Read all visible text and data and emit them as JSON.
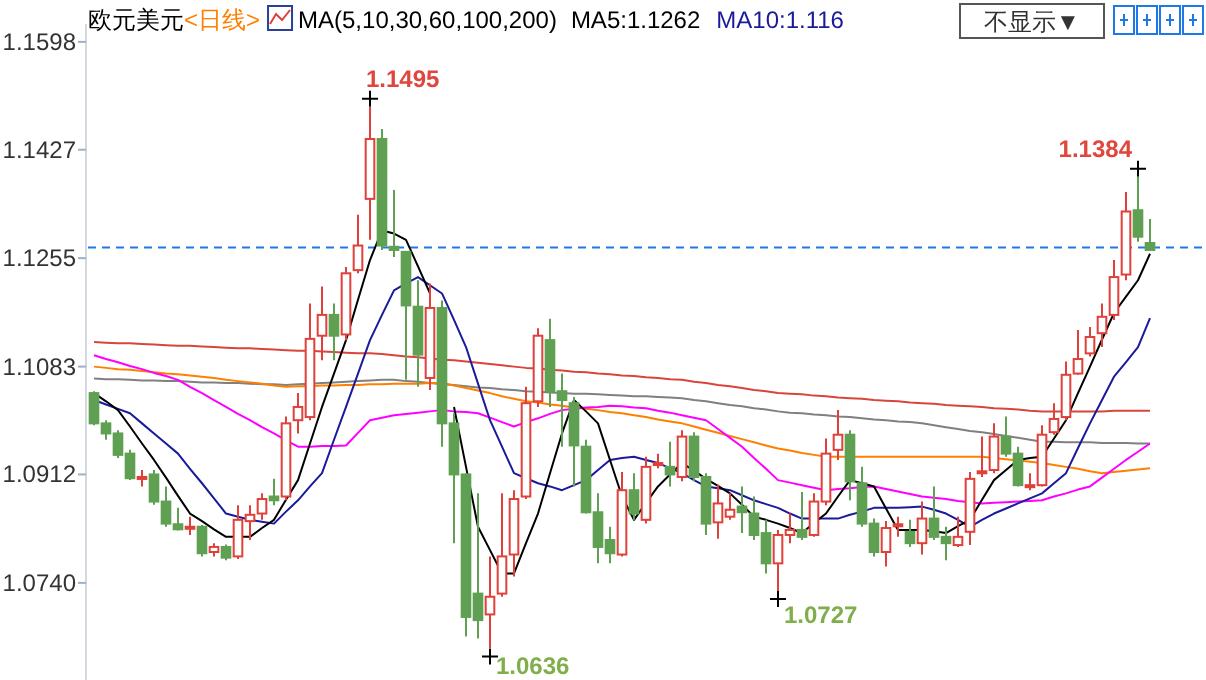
{
  "chart_data": {
    "type": "candlestick",
    "title": "欧元美元",
    "subtitle": "<日线>",
    "categories": [
      null,
      null,
      null,
      null,
      null,
      null,
      null,
      null,
      null,
      null,
      null,
      null,
      null,
      null,
      null,
      null,
      null,
      null,
      null,
      null,
      null,
      null,
      null,
      null,
      null,
      null,
      null,
      null,
      null,
      null,
      null,
      null,
      null,
      null,
      null,
      null,
      null,
      null,
      null,
      null,
      null,
      null,
      null,
      null,
      null,
      null,
      null,
      null,
      null,
      null,
      null,
      null,
      null,
      null,
      null,
      null,
      null,
      null,
      null,
      null,
      null,
      null,
      null,
      null,
      null,
      null,
      null,
      null,
      null,
      null,
      null,
      null,
      null,
      null,
      null,
      null,
      null,
      null,
      null,
      null,
      null,
      null,
      null,
      null,
      null,
      null,
      null,
      null,
      null
    ],
    "ohlc": [
      [
        1.1041,
        1.1044,
        1.099,
        1.0993
      ],
      [
        1.0993,
        1.0998,
        1.0967,
        1.0977
      ],
      [
        1.0977,
        1.0982,
        1.0938,
        1.0943
      ],
      [
        1.0945,
        1.0951,
        1.0903,
        1.0906
      ],
      [
        1.0905,
        1.0919,
        1.0893,
        1.0908
      ],
      [
        1.0912,
        1.0919,
        1.0864,
        1.0869
      ],
      [
        1.0869,
        1.0893,
        1.0829,
        1.0834
      ],
      [
        1.0833,
        1.0859,
        1.0823,
        1.0825
      ],
      [
        1.0827,
        1.0845,
        1.0816,
        1.0829
      ],
      [
        1.0829,
        1.0832,
        1.0782,
        1.0787
      ],
      [
        1.0789,
        1.0803,
        1.0782,
        1.0797
      ],
      [
        1.0797,
        1.0801,
        1.0776,
        1.078
      ],
      [
        1.0782,
        1.0863,
        1.0778,
        1.084
      ],
      [
        1.0838,
        1.0863,
        1.0808,
        1.0848
      ],
      [
        1.085,
        1.0882,
        1.084,
        1.0873
      ],
      [
        1.0877,
        1.0905,
        1.0863,
        1.0871
      ],
      [
        1.0877,
        1.1004,
        1.0871,
        1.0993
      ],
      [
        1.0998,
        1.1041,
        1.0977,
        1.1019
      ],
      [
        1.1003,
        1.1183,
        1.0998,
        1.1127
      ],
      [
        1.1132,
        1.121,
        1.1093,
        1.1165
      ],
      [
        1.1165,
        1.1183,
        1.1093,
        1.1132
      ],
      [
        1.1134,
        1.1241,
        1.1125,
        1.1231
      ],
      [
        1.1236,
        1.1324,
        1.1231,
        1.1275
      ],
      [
        1.1349,
        1.1495,
        1.1284,
        1.1444
      ],
      [
        1.1444,
        1.146,
        1.1268,
        1.1275
      ],
      [
        1.1273,
        1.1363,
        1.1257,
        1.1268
      ],
      [
        1.1265,
        1.1265,
        1.1062,
        1.118
      ],
      [
        1.1178,
        1.122,
        1.1051,
        1.1102
      ],
      [
        1.1065,
        1.1215,
        1.1046,
        1.1176
      ],
      [
        1.1176,
        1.1188,
        1.0956,
        1.0993
      ],
      [
        1.0993,
        1.1009,
        1.0803,
        1.0912
      ],
      [
        1.0912,
        1.0914,
        1.0655,
        1.0686
      ],
      [
        1.0723,
        1.0882,
        1.0652,
        1.0681
      ],
      [
        1.069,
        1.0782,
        1.0636,
        1.0718
      ],
      [
        1.0723,
        1.0882,
        1.0718,
        1.0782
      ],
      [
        1.0785,
        1.0887,
        1.075,
        1.0873
      ],
      [
        1.0877,
        1.1051,
        1.0873,
        1.1025
      ],
      [
        1.1028,
        1.1144,
        1.1019,
        1.1132
      ],
      [
        1.1125,
        1.1159,
        1.1019,
        1.1044
      ],
      [
        1.1044,
        1.1072,
        1.0956,
        1.103
      ],
      [
        1.1025,
        1.1035,
        1.0893,
        1.0958
      ],
      [
        1.0956,
        1.0967,
        1.085,
        1.0852
      ],
      [
        1.0852,
        1.0882,
        1.0771,
        1.0797
      ],
      [
        1.0808,
        1.0829,
        1.0771,
        1.0787
      ],
      [
        1.0785,
        1.0916,
        1.0782,
        1.0887
      ],
      [
        1.0887,
        1.0914,
        1.084,
        1.085
      ],
      [
        1.084,
        1.094,
        1.0834,
        1.0924
      ],
      [
        1.0928,
        1.0945,
        1.0922,
        1.093
      ],
      [
        1.0924,
        1.0964,
        1.0893,
        1.0912
      ],
      [
        1.0908,
        1.0982,
        1.0901,
        1.0972
      ],
      [
        1.0972,
        1.0979,
        1.0901,
        1.0908
      ],
      [
        1.0908,
        1.0914,
        1.0816,
        1.0834
      ],
      [
        1.0836,
        1.0896,
        1.081,
        1.0866
      ],
      [
        1.0845,
        1.0882,
        1.084,
        1.0856
      ],
      [
        1.0861,
        1.0893,
        1.0819,
        1.0852
      ],
      [
        1.085,
        1.0877,
        1.0808,
        1.0816
      ],
      [
        1.0819,
        1.084,
        1.0755,
        1.0771
      ],
      [
        1.0771,
        1.0824,
        1.0727,
        1.0816
      ],
      [
        1.0816,
        1.085,
        1.0803,
        1.0824
      ],
      [
        1.0824,
        1.0884,
        1.0808,
        1.0813
      ],
      [
        1.0816,
        1.0882,
        1.0813,
        1.0869
      ],
      [
        1.0869,
        1.0969,
        1.0863,
        1.0945
      ],
      [
        1.0951,
        1.1014,
        1.0935,
        1.0975
      ],
      [
        1.0975,
        1.0982,
        1.0871,
        1.0901
      ],
      [
        1.0898,
        1.0924,
        1.0829,
        1.0834
      ],
      [
        1.0834,
        1.0842,
        1.0782,
        1.0789
      ],
      [
        1.0789,
        1.0838,
        1.0766,
        1.0827
      ],
      [
        1.0831,
        1.0845,
        1.0813,
        1.0833
      ],
      [
        1.0821,
        1.084,
        1.0797,
        1.0803
      ],
      [
        1.0803,
        1.0869,
        1.0785,
        1.0842
      ],
      [
        1.0842,
        1.0893,
        1.0808,
        1.0813
      ],
      [
        1.0813,
        1.0829,
        1.0776,
        1.0803
      ],
      [
        1.08,
        1.0845,
        1.0797,
        1.0813
      ],
      [
        1.0821,
        1.0916,
        1.08,
        1.0905
      ],
      [
        1.0914,
        1.0972,
        1.0908,
        1.0917
      ],
      [
        1.0919,
        1.0993,
        1.0914,
        1.0972
      ],
      [
        1.0972,
        1.1004,
        1.094,
        1.0945
      ],
      [
        1.0945,
        1.0956,
        1.0893,
        1.0895
      ],
      [
        1.0893,
        1.0914,
        1.0887,
        1.0895
      ],
      [
        1.0895,
        1.099,
        1.0893,
        1.0975
      ],
      [
        1.0979,
        1.1025,
        1.0975,
        1.1
      ],
      [
        1.1003,
        1.1091,
        1.0998,
        1.107
      ],
      [
        1.1072,
        1.1141,
        1.107,
        1.1095
      ],
      [
        1.1104,
        1.1146,
        1.1099,
        1.113
      ],
      [
        1.1136,
        1.1183,
        1.1114,
        1.1162
      ],
      [
        1.1165,
        1.1252,
        1.1157,
        1.1225
      ],
      [
        1.1229,
        1.136,
        1.122,
        1.1329
      ],
      [
        1.1331,
        1.1384,
        1.1281,
        1.1289
      ],
      [
        1.1279,
        1.1317,
        1.1268,
        1.1268
      ]
    ],
    "series": [
      {
        "name": "MA5:1.1262",
        "type": "line",
        "color": "#000000",
        "values": [
          1.1041,
          1.1028,
          1.1014,
          1.0988,
          1.0961,
          1.0935,
          1.0907,
          1.0878,
          1.085,
          1.0838,
          1.0825,
          1.0813,
          1.0813,
          1.0813,
          1.0827,
          1.084,
          1.0872,
          1.0903,
          1.0961,
          1.1019,
          1.1072,
          1.1125,
          1.1189,
          1.1252,
          1.1299,
          1.1294,
          1.1284,
          1.1242,
          1.1199,
          null,
          1.1019,
          1.0924,
          1.0829,
          1.0792,
          1.0755,
          1.0755,
          1.0803,
          1.085,
          1.0914,
          1.0977,
          1.103,
          1.1012,
          1.0993,
          1.0935,
          1.0877,
          1.084,
          1.0867,
          1.0893,
          1.0912,
          1.093,
          1.0918,
          1.0905,
          1.0894,
          1.0882,
          1.0864,
          1.0845,
          1.084,
          1.0834,
          1.0827,
          1.0819,
          1.0835,
          1.085,
          1.0877,
          1.0903,
          1.0898,
          1.0893,
          1.0858,
          1.0824,
          1.0824,
          1.0824,
          1.0822,
          1.0819,
          1.083,
          1.084,
          1.0872,
          1.0903,
          1.0919,
          1.0935,
          1.0938,
          1.094,
          1.0969,
          1.0998,
          1.1041,
          1.1083,
          1.1126,
          1.1168,
          1.1194,
          1.122,
          1.1262
        ]
      },
      {
        "name": "MA10:1.116",
        "type": "line",
        "color": "#1a1a9a",
        "values": [
          1.103,
          1.1023,
          1.1016,
          1.1009,
          1.0993,
          1.0977,
          1.0961,
          1.0945,
          1.0921,
          1.0898,
          1.0874,
          1.085,
          1.0845,
          1.084,
          1.0837,
          1.0834,
          1.0853,
          1.0871,
          1.0893,
          1.0914,
          1.0967,
          1.1019,
          1.1072,
          1.1125,
          1.1165,
          1.1204,
          1.1215,
          1.1225,
          1.1212,
          1.1199,
          1.1157,
          1.1114,
          1.1056,
          1.0998,
          1.0956,
          1.0914,
          1.0906,
          1.0898,
          1.0893,
          1.0887,
          1.0895,
          1.0903,
          1.0919,
          1.0935,
          1.0938,
          1.094,
          1.0935,
          1.093,
          1.0922,
          1.0914,
          1.0903,
          1.0893,
          1.089,
          1.0887,
          1.0879,
          1.0871,
          1.0865,
          1.0859,
          1.085,
          1.0842,
          1.0842,
          1.0842,
          1.0842,
          1.0848,
          1.0853,
          1.0859,
          1.0859,
          1.0859,
          1.086,
          1.0861,
          1.0856,
          1.085,
          1.084,
          1.0829,
          1.084,
          1.085,
          1.0858,
          1.0866,
          1.0874,
          1.0882,
          1.0898,
          1.0914,
          1.0954,
          1.0993,
          1.103,
          1.1067,
          1.109,
          1.1114,
          1.116
        ]
      },
      {
        "type": "line",
        "color": "#ff00ff",
        "values": [
          1.1101,
          1.1095,
          1.109,
          1.1084,
          1.1079,
          1.1073,
          1.1068,
          1.1062,
          1.1051,
          1.1041,
          1.103,
          1.1019,
          1.1008,
          1.0998,
          1.0987,
          1.0977,
          1.0966,
          1.0956,
          1.0956,
          1.0957,
          1.0957,
          1.0958,
          1.0978,
          1.0998,
          1.1002,
          1.1006,
          1.1008,
          1.101,
          1.1012,
          1.1014,
          1.1012,
          1.1011,
          1.1009,
          1.1002,
          1.0995,
          1.0988,
          1.0995,
          1.1001,
          1.1008,
          1.1014,
          1.1016,
          1.1018,
          1.1019,
          1.1021,
          1.102,
          1.1018,
          1.1017,
          1.1013,
          1.101,
          1.1006,
          1.1002,
          1.0998,
          1.0984,
          1.097,
          1.0956,
          1.0938,
          1.0921,
          1.0903,
          1.0899,
          1.0895,
          1.0891,
          1.0887,
          1.0889,
          1.089,
          1.0892,
          1.0893,
          1.0889,
          1.0885,
          1.0881,
          1.0877,
          1.0875,
          1.0873,
          1.087,
          1.0868,
          1.0866,
          1.0867,
          1.0868,
          1.0869,
          1.087,
          1.0871,
          1.0877,
          1.0882,
          1.0888,
          1.0893,
          1.0907,
          1.0921,
          1.0935,
          1.0948,
          1.0961
        ]
      },
      {
        "type": "line",
        "color": "#ff8000",
        "values": [
          1.1083,
          1.1081,
          1.1079,
          1.1078,
          1.1076,
          1.1074,
          1.1072,
          1.1071,
          1.1069,
          1.1067,
          1.1065,
          1.1062,
          1.106,
          1.1058,
          1.1056,
          1.1053,
          1.1051,
          1.1052,
          1.1052,
          1.1053,
          1.1053,
          1.1054,
          1.1054,
          1.1055,
          1.1055,
          1.1056,
          1.1056,
          1.1056,
          1.1057,
          1.1057,
          1.1053,
          1.1049,
          1.1045,
          1.1041,
          1.1036,
          1.1032,
          1.1028,
          1.1026,
          1.1023,
          1.1021,
          1.1018,
          1.1016,
          1.1014,
          1.1011,
          1.1009,
          1.1006,
          1.1003,
          1.0999,
          1.0996,
          1.0993,
          1.0988,
          1.0983,
          1.0978,
          1.0973,
          1.0968,
          1.0963,
          1.0958,
          1.0953,
          1.095,
          1.0946,
          1.0943,
          1.094,
          1.094,
          1.094,
          1.094,
          1.094,
          1.094,
          1.094,
          1.094,
          1.094,
          1.094,
          1.094,
          1.094,
          1.094,
          1.094,
          1.0938,
          1.0936,
          1.0934,
          1.0932,
          1.093,
          1.0927,
          1.0924,
          1.0921,
          1.0917,
          1.0914,
          1.0916,
          1.0918,
          1.092,
          1.0922
        ]
      },
      {
        "type": "line",
        "color": "#808080",
        "values": [
          1.1064,
          1.1063,
          1.1063,
          1.1062,
          1.1061,
          1.1061,
          1.106,
          1.106,
          1.1059,
          1.1058,
          1.1058,
          1.1057,
          1.1057,
          1.1056,
          1.1055,
          1.1055,
          1.1054,
          1.1055,
          1.1056,
          1.1057,
          1.1058,
          1.1059,
          1.106,
          1.1061,
          1.1062,
          1.1062,
          1.106,
          1.1059,
          1.1057,
          1.1055,
          1.1054,
          1.1052,
          1.105,
          1.1049,
          1.1047,
          1.1046,
          1.1044,
          1.1043,
          1.1042,
          1.1041,
          1.104,
          1.104,
          1.1039,
          1.1038,
          1.1037,
          1.1036,
          1.1036,
          1.1035,
          1.1034,
          1.1033,
          1.103,
          1.1028,
          1.1025,
          1.1022,
          1.102,
          1.1017,
          1.1015,
          1.1012,
          1.101,
          1.1009,
          1.1007,
          1.1006,
          1.1004,
          1.1003,
          1.1001,
          1.0999,
          1.0998,
          1.0996,
          1.0995,
          1.0993,
          1.099,
          1.0987,
          1.0984,
          1.0981,
          1.0979,
          1.0976,
          1.0973,
          1.097,
          1.0967,
          1.0964,
          1.0964,
          1.0963,
          1.0963,
          1.0963,
          1.0962,
          1.0962,
          1.0962,
          1.0961,
          1.0961
        ]
      },
      {
        "type": "line",
        "color": "#d9453a",
        "values": [
          1.1122,
          1.1121,
          1.112,
          1.112,
          1.1119,
          1.1118,
          1.1117,
          1.1116,
          1.1116,
          1.1115,
          1.1114,
          1.1113,
          1.1112,
          1.1112,
          1.1111,
          1.111,
          1.1109,
          1.1108,
          1.1108,
          1.1107,
          1.1106,
          1.1105,
          1.1104,
          1.1104,
          1.1103,
          1.1101,
          1.1099,
          1.1098,
          1.1096,
          1.1094,
          1.1093,
          1.1091,
          1.1089,
          1.1087,
          1.1085,
          1.1083,
          1.1081,
          1.108,
          1.1078,
          1.1077,
          1.1075,
          1.1074,
          1.1072,
          1.1071,
          1.1069,
          1.1068,
          1.1066,
          1.1065,
          1.1063,
          1.1062,
          1.1059,
          1.1057,
          1.1054,
          1.1052,
          1.1049,
          1.1046,
          1.1044,
          1.1041,
          1.104,
          1.1039,
          1.1037,
          1.1036,
          1.1034,
          1.1033,
          1.1032,
          1.103,
          1.1029,
          1.1028,
          1.1026,
          1.1025,
          1.1024,
          1.1022,
          1.1021,
          1.102,
          1.1019,
          1.1017,
          1.1016,
          1.1015,
          1.1013,
          1.1012,
          1.1012,
          1.1012,
          1.1012,
          1.1012,
          1.1012,
          1.1013,
          1.1013,
          1.1013,
          1.1013
        ]
      }
    ],
    "ylim": [
      1.0586,
      1.162
    ],
    "yticks": [
      {
        "value": 1.074,
        "label": "1.0740"
      },
      1.0912,
      1.1083,
      1.1255,
      1.1427,
      1.1598
    ],
    "tick_labels": "y",
    "legend": "top",
    "ref_lines": [
      {
        "axis": "y",
        "value": 1.1272,
        "color": "#1e78e6",
        "line_style": "dashed"
      }
    ],
    "annotations": [
      "MA(5,10,30,60,100,200)",
      "不显示▼",
      "1.1495",
      "1.0636",
      "1.0727",
      "1.1384"
    ]
  }
}
